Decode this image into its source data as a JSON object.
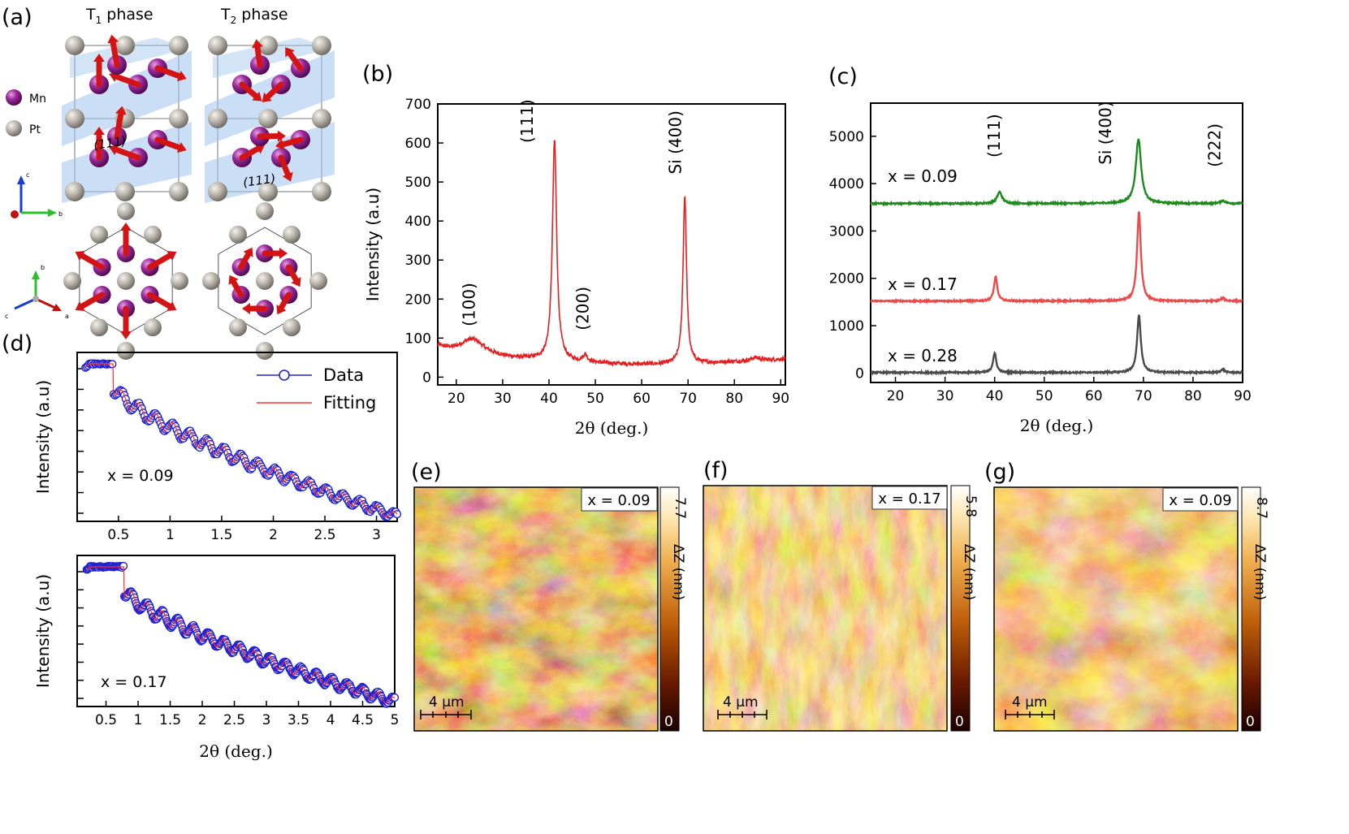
{
  "panels": {
    "a": {
      "label": "(a)",
      "t1_title_main": "T",
      "t1_title_sub": "1",
      "t1_title_rest": " phase",
      "t2_title_main": "T",
      "t2_title_sub": "2",
      "t2_title_rest": " phase",
      "legend_mn": "Mn",
      "legend_pt": "Pt",
      "plane_label": "(111)",
      "axis_c": "c",
      "axis_b": "b",
      "axis_a": "a",
      "colors": {
        "mn": "#8e1a8e",
        "pt": "#b5b0a8",
        "arrow": "#d41414",
        "plane": "#9ec4ee"
      }
    },
    "b": {
      "label": "(b)"
    },
    "c": {
      "label": "(c)"
    },
    "d": {
      "label": "(d)",
      "legend_data": "Data",
      "legend_fit": "Fitting",
      "top_note": "x = 0.09",
      "bottom_note": "x = 0.17"
    },
    "e": {
      "label": "(e)",
      "tag": "x = 0.09",
      "scale_max": "7.7",
      "scale_min": "0",
      "scale_unit": "ΔZ (nm)",
      "scalebar": "4 μm"
    },
    "f": {
      "label": "(f)",
      "tag": "x = 0.17",
      "scale_max": "5.8",
      "scale_min": "0",
      "scale_unit": "ΔZ (nm)",
      "scalebar": "4 μm"
    },
    "g": {
      "label": "(g)",
      "tag": "x = 0.09",
      "scale_max": "8.7",
      "scale_min": "0",
      "scale_unit": "ΔZ (nm)",
      "scalebar": "4 μm"
    }
  },
  "chart_data": [
    {
      "id": "b",
      "type": "line",
      "xlabel": "2θ (deg.)",
      "ylabel": "Intensity (a.u)",
      "xlim": [
        16,
        91
      ],
      "ylim": [
        -20,
        700
      ],
      "xticks": [
        20,
        30,
        40,
        50,
        60,
        70,
        80,
        90
      ],
      "yticks": [
        0,
        100,
        200,
        300,
        400,
        500,
        600,
        700
      ],
      "color": "#e61e1e",
      "background": 55,
      "peaks": [
        {
          "x": 23.5,
          "height": 40,
          "width": 3.0
        },
        {
          "x": 41.2,
          "height": 565,
          "width": 0.55
        },
        {
          "x": 47.8,
          "height": 18,
          "width": 0.6
        },
        {
          "x": 69.3,
          "height": 432,
          "width": 0.45
        },
        {
          "x": 84.5,
          "height": 8,
          "width": 1.0
        }
      ],
      "annotations": [
        {
          "text": "(100)",
          "x": 24,
          "y": 130
        },
        {
          "text": "(111)",
          "x": 36.5,
          "y": 600
        },
        {
          "text": "(200)",
          "x": 48.5,
          "y": 120
        },
        {
          "text": "Si (400)",
          "x": 68.5,
          "y": 520
        }
      ]
    },
    {
      "id": "c",
      "type": "line",
      "xlabel": "2θ (deg.)",
      "ylabel": "",
      "xlim": [
        15,
        90
      ],
      "ylim": [
        -200,
        5700
      ],
      "xticks": [
        20,
        30,
        40,
        50,
        60,
        70,
        80,
        90
      ],
      "yticks": [
        0,
        1000,
        2000,
        3000,
        4000,
        5000
      ],
      "series": [
        {
          "name": "x = 0.09",
          "color": "#1c8a1c",
          "baseline": 3580,
          "peaks": [
            {
              "x": 41.0,
              "height": 240,
              "width": 0.6
            },
            {
              "x": 69.0,
              "height": 1360,
              "width": 0.65
            },
            {
              "x": 86.0,
              "height": 60,
              "width": 0.6
            }
          ]
        },
        {
          "name": "x = 0.17",
          "color": "#ee4a4a",
          "baseline": 1520,
          "peaks": [
            {
              "x": 40.2,
              "height": 510,
              "width": 0.4
            },
            {
              "x": 69.1,
              "height": 1880,
              "width": 0.45
            },
            {
              "x": 86.0,
              "height": 60,
              "width": 0.5
            }
          ]
        },
        {
          "name": "x = 0.28",
          "color": "#4a4a4a",
          "baseline": 10,
          "peaks": [
            {
              "x": 40.0,
              "height": 410,
              "width": 0.4
            },
            {
              "x": 69.1,
              "height": 1210,
              "width": 0.45
            },
            {
              "x": 86.0,
              "height": 60,
              "width": 0.5
            }
          ]
        }
      ],
      "annotations": [
        {
          "text": "(111)",
          "x": 41.0,
          "y": 4550
        },
        {
          "text": "Si (400)",
          "x": 63.5,
          "y": 4400
        },
        {
          "text": "(222)",
          "x": 85.5,
          "y": 4350
        }
      ]
    },
    {
      "id": "d_top",
      "type": "line",
      "xlabel": "",
      "ylabel": "Intensity (a.u)",
      "xlim": [
        0.1,
        3.2
      ],
      "xticks": [
        0.5,
        1,
        1.5,
        2,
        2.5,
        3
      ],
      "series": [
        {
          "name": "Data",
          "color": "#2222d0"
        },
        {
          "name": "Fitting",
          "color": "#ff3030"
        }
      ],
      "start": 0.18,
      "plateau_end": 0.45,
      "end": 3.2,
      "period": 0.165,
      "log_top": 1.0,
      "log_bottom": -2.9
    },
    {
      "id": "d_bottom",
      "type": "line",
      "xlabel": "2θ (deg.)",
      "ylabel": "Intensity (a.u)",
      "xlim": [
        0.05,
        5.0
      ],
      "xticks": [
        0.5,
        1,
        1.5,
        2,
        2.5,
        3,
        3.5,
        4,
        4.5,
        5
      ],
      "series": [
        {
          "name": "Data",
          "color": "#2222d0"
        },
        {
          "name": "Fitting",
          "color": "#ff3030"
        }
      ],
      "start": 0.2,
      "plateau_end": 0.78,
      "end": 5.0,
      "period": 0.24,
      "log_top": 1.0,
      "log_bottom": -2.6
    }
  ]
}
